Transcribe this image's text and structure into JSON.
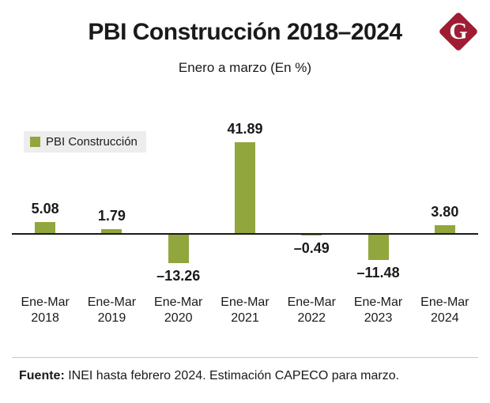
{
  "header": {
    "title": "PBI Construcción 2018–2024",
    "subtitle": "Enero a marzo (En %)",
    "logo_letter": "G",
    "logo_color": "#9e1d33"
  },
  "legend": {
    "label": "PBI Construcción"
  },
  "chart_data": {
    "type": "bar",
    "title": "PBI Construcción 2018–2024",
    "subtitle": "Enero a marzo (En %)",
    "categories": [
      [
        "Ene-Mar",
        "2018"
      ],
      [
        "Ene-Mar",
        "2019"
      ],
      [
        "Ene-Mar",
        "2020"
      ],
      [
        "Ene-Mar",
        "2021"
      ],
      [
        "Ene-Mar",
        "2022"
      ],
      [
        "Ene-Mar",
        "2023"
      ],
      [
        "Ene-Mar",
        "2024"
      ]
    ],
    "values": [
      5.08,
      1.79,
      -13.26,
      41.89,
      -0.49,
      -11.48,
      3.8
    ],
    "value_labels": [
      "5.08",
      "1.79",
      "–13.26",
      "41.89",
      "–0.49",
      "–11.48",
      "3.80"
    ],
    "series_name": "PBI Construcción",
    "bar_color": "#91a63c",
    "xlabel": "",
    "ylabel": "",
    "ylim": [
      -20,
      50
    ],
    "grid": false,
    "legend_position": "upper-left"
  },
  "footer": {
    "source_bold": "Fuente:",
    "source_rest": " INEI hasta febrero 2024. Estimación CAPECO para marzo."
  }
}
